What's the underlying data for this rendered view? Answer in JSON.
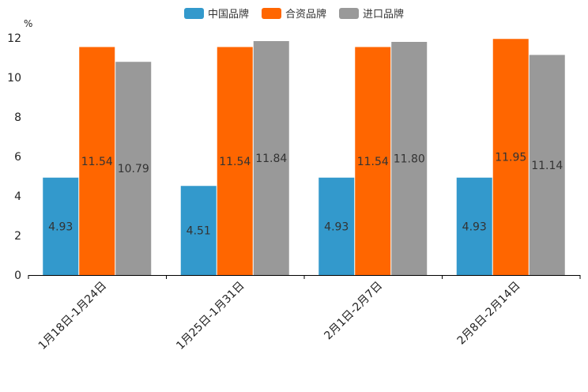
{
  "chart_data": {
    "type": "bar",
    "ylabel": "%",
    "ylim": [
      0,
      12
    ],
    "yticks": [
      0,
      2,
      4,
      6,
      8,
      10,
      12
    ],
    "categories": [
      "1月18日-1月24日",
      "1月25日-1月31日",
      "2月1日-2月7日",
      "2月8日-2月14日"
    ],
    "series": [
      {
        "name": "中国品牌",
        "color": "#3399cc",
        "values": [
          4.93,
          4.51,
          4.93,
          4.93
        ],
        "labels": [
          "4.93",
          "4.51",
          "4.93",
          "4.93"
        ]
      },
      {
        "name": "合资品牌",
        "color": "#ff6600",
        "values": [
          11.54,
          11.54,
          11.54,
          11.95
        ],
        "labels": [
          "11.54",
          "11.54",
          "11.54",
          "11.95"
        ]
      },
      {
        "name": "进口品牌",
        "color": "#999999",
        "values": [
          10.79,
          11.84,
          11.8,
          11.14
        ],
        "labels": [
          "10.79",
          "11.84",
          "11.80",
          "11.14"
        ]
      }
    ],
    "legend_position": "top-center"
  }
}
